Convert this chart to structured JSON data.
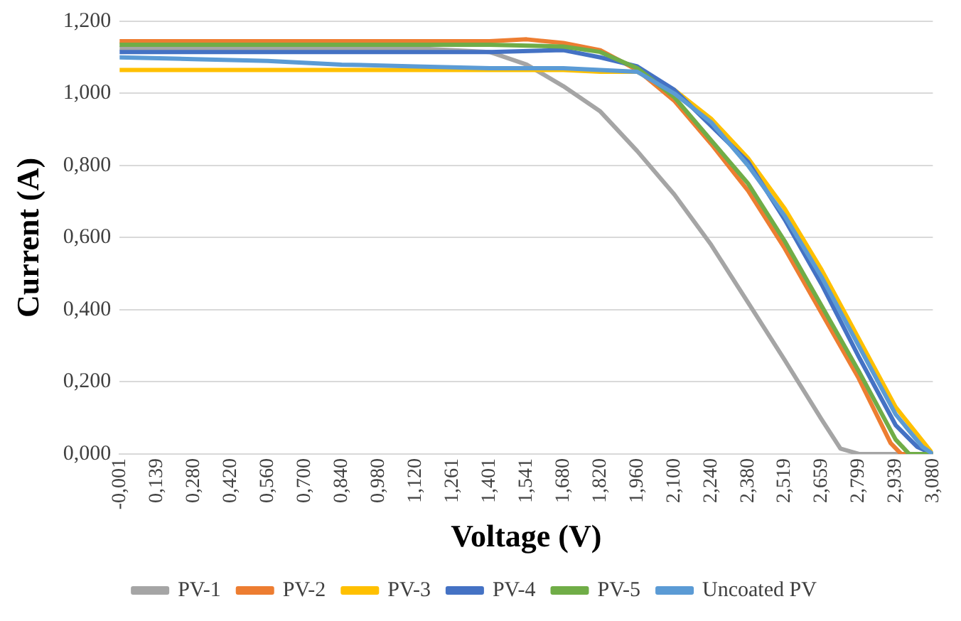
{
  "chart_data": {
    "type": "line",
    "xlabel": "Voltage (V)",
    "ylabel": "Current (A)",
    "xlim": [
      -0.001,
      3.08
    ],
    "xticks": [
      {
        "value": -0.001,
        "label": "-0,001"
      },
      {
        "value": 0.139,
        "label": "0,139"
      },
      {
        "value": 0.28,
        "label": "0,280"
      },
      {
        "value": 0.42,
        "label": "0,420"
      },
      {
        "value": 0.56,
        "label": "0,560"
      },
      {
        "value": 0.7,
        "label": "0,700"
      },
      {
        "value": 0.84,
        "label": "0,840"
      },
      {
        "value": 0.98,
        "label": "0,980"
      },
      {
        "value": 1.12,
        "label": "1,120"
      },
      {
        "value": 1.261,
        "label": "1,261"
      },
      {
        "value": 1.401,
        "label": "1,401"
      },
      {
        "value": 1.541,
        "label": "1,541"
      },
      {
        "value": 1.68,
        "label": "1,680"
      },
      {
        "value": 1.82,
        "label": "1,820"
      },
      {
        "value": 1.96,
        "label": "1,960"
      },
      {
        "value": 2.1,
        "label": "2,100"
      },
      {
        "value": 2.24,
        "label": "2,240"
      },
      {
        "value": 2.38,
        "label": "2,380"
      },
      {
        "value": 2.519,
        "label": "2,519"
      },
      {
        "value": 2.659,
        "label": "2,659"
      },
      {
        "value": 2.799,
        "label": "2,799"
      },
      {
        "value": 2.939,
        "label": "2,939"
      },
      {
        "value": 3.08,
        "label": "3,080"
      }
    ],
    "ylim": [
      0,
      1.2
    ],
    "yticks": [
      {
        "value": 0,
        "label": "0,000"
      },
      {
        "value": 0.2,
        "label": "0,200"
      },
      {
        "value": 0.4,
        "label": "0,400"
      },
      {
        "value": 0.6,
        "label": "0,600"
      },
      {
        "value": 0.8,
        "label": "0,800"
      },
      {
        "value": 1.0,
        "label": "1,000"
      },
      {
        "value": 1.2,
        "label": "1,200"
      }
    ],
    "grid": "y",
    "legend": "bottom",
    "marker": "none",
    "line_style": "solid",
    "series": [
      {
        "name": "PV-1",
        "color": "#a5a5a5",
        "x": [
          -0.001,
          0.56,
          1.12,
          1.401,
          1.541,
          1.68,
          1.82,
          1.96,
          2.1,
          2.24,
          2.38,
          2.519,
          2.659,
          2.73,
          2.8,
          3.08
        ],
        "values": [
          1.125,
          1.125,
          1.125,
          1.115,
          1.08,
          1.02,
          0.95,
          0.84,
          0.72,
          0.58,
          0.42,
          0.26,
          0.095,
          0.015,
          0,
          0
        ]
      },
      {
        "name": "PV-2",
        "color": "#ed7d31",
        "x": [
          -0.001,
          0.56,
          1.12,
          1.401,
          1.541,
          1.68,
          1.82,
          1.96,
          2.1,
          2.24,
          2.38,
          2.519,
          2.659,
          2.799,
          2.92,
          2.96,
          3.08
        ],
        "values": [
          1.145,
          1.145,
          1.145,
          1.145,
          1.15,
          1.14,
          1.12,
          1.065,
          0.98,
          0.86,
          0.73,
          0.57,
          0.39,
          0.21,
          0.03,
          0,
          0
        ]
      },
      {
        "name": "PV-3",
        "color": "#ffc000",
        "x": [
          -0.001,
          0.56,
          1.12,
          1.401,
          1.68,
          1.82,
          1.96,
          2.1,
          2.24,
          2.38,
          2.519,
          2.659,
          2.799,
          2.939,
          3.08
        ],
        "values": [
          1.065,
          1.065,
          1.065,
          1.065,
          1.065,
          1.06,
          1.06,
          1.01,
          0.93,
          0.82,
          0.68,
          0.51,
          0.32,
          0.13,
          0
        ]
      },
      {
        "name": "PV-4",
        "color": "#4472c4",
        "x": [
          -0.001,
          0.56,
          1.12,
          1.401,
          1.68,
          1.82,
          1.96,
          2.1,
          2.24,
          2.38,
          2.519,
          2.659,
          2.799,
          2.939,
          3.02,
          3.08
        ],
        "values": [
          1.115,
          1.115,
          1.115,
          1.115,
          1.12,
          1.1,
          1.075,
          1.01,
          0.91,
          0.81,
          0.65,
          0.47,
          0.27,
          0.08,
          0.02,
          0
        ]
      },
      {
        "name": "PV-5",
        "color": "#70ad47",
        "x": [
          -0.001,
          0.56,
          1.12,
          1.401,
          1.68,
          1.82,
          1.96,
          2.1,
          2.24,
          2.38,
          2.519,
          2.659,
          2.799,
          2.939,
          2.99,
          3.08
        ],
        "values": [
          1.135,
          1.135,
          1.135,
          1.135,
          1.13,
          1.115,
          1.07,
          0.99,
          0.87,
          0.75,
          0.59,
          0.41,
          0.23,
          0.04,
          0,
          0
        ]
      },
      {
        "name": "Uncoated PV",
        "color": "#5b9bd5",
        "x": [
          -0.001,
          0.28,
          0.56,
          0.84,
          1.12,
          1.401,
          1.68,
          1.82,
          1.96,
          2.1,
          2.24,
          2.38,
          2.519,
          2.659,
          2.799,
          2.939,
          3.04,
          3.08
        ],
        "values": [
          1.1,
          1.095,
          1.09,
          1.08,
          1.075,
          1.07,
          1.07,
          1.065,
          1.06,
          1.0,
          0.92,
          0.8,
          0.66,
          0.49,
          0.3,
          0.11,
          0.02,
          0
        ]
      }
    ]
  }
}
